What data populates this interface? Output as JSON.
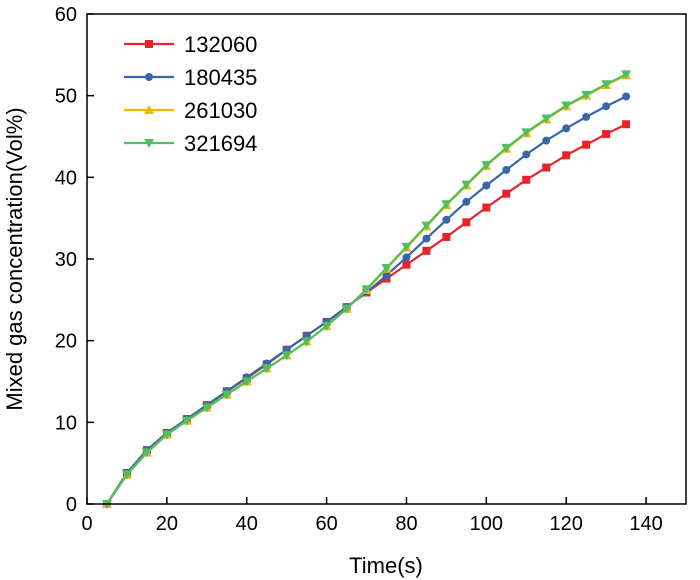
{
  "chart_data": {
    "type": "line",
    "title": "",
    "xlabel": "Time(s)",
    "ylabel": "Mixed gas concentration(Vol%)",
    "xlim": [
      0,
      150
    ],
    "ylim": [
      0,
      60
    ],
    "xticks": [
      0,
      20,
      40,
      60,
      80,
      100,
      120,
      140
    ],
    "yticks": [
      0,
      10,
      20,
      30,
      40,
      50,
      60
    ],
    "grid": false,
    "legend": "top-left",
    "x": [
      5,
      10,
      15,
      20,
      25,
      30,
      35,
      40,
      45,
      50,
      55,
      60,
      65,
      70,
      75,
      80,
      85,
      90,
      95,
      100,
      105,
      110,
      115,
      120,
      125,
      130,
      135
    ],
    "series": [
      {
        "name": "132060",
        "color": "#e8232a",
        "marker": "square",
        "values": [
          0,
          3.8,
          6.6,
          8.7,
          10.4,
          12.1,
          13.8,
          15.4,
          17.1,
          18.9,
          20.6,
          22.3,
          24.1,
          25.9,
          27.6,
          29.3,
          31.0,
          32.7,
          34.5,
          36.3,
          38.0,
          39.7,
          41.2,
          42.7,
          44.0,
          45.3,
          46.5
        ]
      },
      {
        "name": "180435",
        "color": "#3a66a8",
        "marker": "circle",
        "values": [
          0,
          3.8,
          6.6,
          8.7,
          10.4,
          12.1,
          13.8,
          15.5,
          17.2,
          18.9,
          20.6,
          22.3,
          24.1,
          25.9,
          28.0,
          30.2,
          32.5,
          34.8,
          37.0,
          39.0,
          40.9,
          42.8,
          44.5,
          46.0,
          47.4,
          48.7,
          49.9
        ]
      },
      {
        "name": "261030",
        "color": "#f5b800",
        "marker": "triangle-up",
        "values": [
          0,
          3.6,
          6.3,
          8.5,
          10.2,
          11.8,
          13.4,
          15.0,
          16.6,
          18.2,
          19.9,
          21.8,
          23.9,
          26.2,
          28.8,
          31.4,
          34.0,
          36.6,
          39.0,
          41.4,
          43.5,
          45.4,
          47.1,
          48.7,
          50.0,
          51.3,
          52.5
        ]
      },
      {
        "name": "321694",
        "color": "#4fbf5f",
        "marker": "triangle-down",
        "values": [
          0,
          3.6,
          6.3,
          8.5,
          10.2,
          11.8,
          13.4,
          15.0,
          16.6,
          18.2,
          19.9,
          21.8,
          23.9,
          26.3,
          28.9,
          31.5,
          34.1,
          36.7,
          39.1,
          41.5,
          43.6,
          45.5,
          47.2,
          48.8,
          50.1,
          51.4,
          52.6
        ]
      }
    ]
  }
}
